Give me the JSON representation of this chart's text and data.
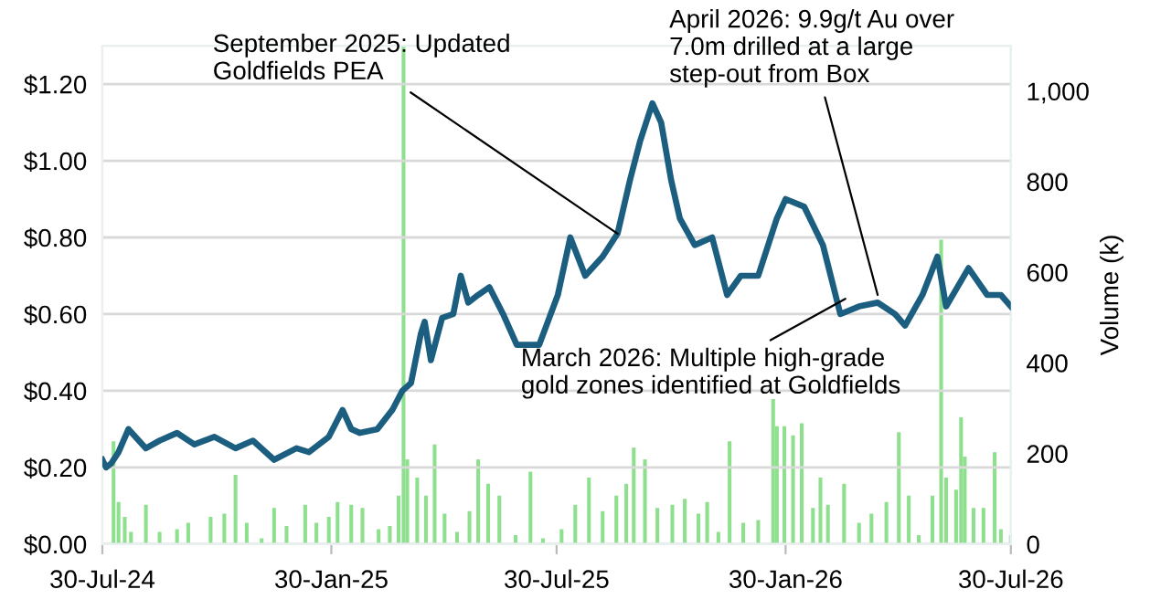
{
  "chart_data": {
    "type": "line",
    "xlim": [
      "2024-07-30",
      "2026-07-30"
    ],
    "xticks": [
      {
        "value": "2024-07-30",
        "label": "30-Jul-24"
      },
      {
        "value": "2025-01-30",
        "label": "30-Jan-25"
      },
      {
        "value": "2025-07-30",
        "label": "30-Jul-25"
      },
      {
        "value": "2026-01-30",
        "label": "30-Jan-26"
      },
      {
        "value": "2026-07-30",
        "label": "30-Jul-26"
      }
    ],
    "ylim": [
      0,
      1.3
    ],
    "yticks": [
      {
        "value": 0,
        "label": "$0.00"
      },
      {
        "value": 0.2,
        "label": "$0.20"
      },
      {
        "value": 0.4,
        "label": "$0.40"
      },
      {
        "value": 0.6,
        "label": "$0.60"
      },
      {
        "value": 0.8,
        "label": "$0.80"
      },
      {
        "value": 1.0,
        "label": "$1.00"
      },
      {
        "value": 1.2,
        "label": "$1.20"
      }
    ],
    "y2lim": [
      0,
      1100
    ],
    "y2ticks": [
      0,
      200,
      400,
      600,
      800,
      {
        "value": 1000,
        "label": "1,000"
      }
    ],
    "y2label": "Volume (k)",
    "grid": "y",
    "series": [
      {
        "type": "bar",
        "axis": "y2",
        "color": "#8ee08e",
        "x": [
          "2024-08-08",
          "2024-08-12",
          "2024-08-17",
          "2024-08-22",
          "2024-09-03",
          "2024-09-14",
          "2024-09-28",
          "2024-10-07",
          "2024-10-25",
          "2024-11-05",
          "2024-11-14",
          "2024-11-23",
          "2024-12-05",
          "2024-12-15",
          "2024-12-25",
          "2025-01-09",
          "2025-01-18",
          "2025-01-28",
          "2025-02-04",
          "2025-02-15",
          "2025-02-24",
          "2025-03-09",
          "2025-03-18",
          "2025-03-25",
          "2025-03-29",
          "2025-04-01",
          "2025-04-09",
          "2025-04-16",
          "2025-04-23",
          "2025-05-01",
          "2025-05-11",
          "2025-05-21",
          "2025-05-28",
          "2025-06-05",
          "2025-06-14",
          "2025-06-27",
          "2025-07-09",
          "2025-07-19",
          "2025-08-03",
          "2025-08-14",
          "2025-08-25",
          "2025-09-05",
          "2025-09-16",
          "2025-09-24",
          "2025-09-30",
          "2025-10-09",
          "2025-10-19",
          "2025-10-31",
          "2025-11-10",
          "2025-11-21",
          "2025-11-28",
          "2025-12-07",
          "2025-12-16",
          "2025-12-27",
          "2026-01-08",
          "2026-01-20",
          "2026-01-23",
          "2026-01-29",
          "2026-02-05",
          "2026-02-12",
          "2026-02-21",
          "2026-02-27",
          "2026-03-05",
          "2026-03-18",
          "2026-03-30",
          "2026-04-09",
          "2026-04-21",
          "2026-05-01",
          "2026-05-09",
          "2026-05-17",
          "2026-05-28",
          "2026-06-04",
          "2026-06-08",
          "2026-06-16",
          "2026-06-20",
          "2026-06-23",
          "2026-06-30",
          "2026-07-08",
          "2026-07-17",
          "2026-07-22",
          "2026-07-30"
        ],
        "values": [
          227,
          93,
          60,
          27,
          87,
          27,
          33,
          47,
          60,
          67,
          153,
          47,
          13,
          80,
          40,
          87,
          47,
          60,
          93,
          87,
          80,
          33,
          40,
          107,
          1100,
          187,
          147,
          107,
          220,
          67,
          27,
          73,
          187,
          133,
          107,
          20,
          160,
          13,
          33,
          87,
          147,
          73,
          107,
          133,
          213,
          187,
          80,
          87,
          100,
          67,
          93,
          27,
          227,
          47,
          53,
          320,
          260,
          260,
          240,
          267,
          80,
          147,
          87,
          133,
          47,
          67,
          93,
          247,
          107,
          20,
          107,
          672,
          147,
          120,
          280,
          193,
          80,
          80,
          203,
          33,
          20
        ]
      },
      {
        "color": "#1b5e80",
        "x": [
          "2024-07-30",
          "2024-08-02",
          "2024-08-06",
          "2024-08-12",
          "2024-08-20",
          "2024-09-03",
          "2024-09-14",
          "2024-09-28",
          "2024-10-12",
          "2024-10-28",
          "2024-11-14",
          "2024-11-28",
          "2024-12-15",
          "2025-01-02",
          "2025-01-12",
          "2025-01-28",
          "2025-02-08",
          "2025-02-15",
          "2025-02-22",
          "2025-03-08",
          "2025-03-20",
          "2025-03-28",
          "2025-04-04",
          "2025-04-12",
          "2025-04-15",
          "2025-04-20",
          "2025-04-29",
          "2025-05-08",
          "2025-05-14",
          "2025-05-20",
          "2025-05-28",
          "2025-06-06",
          "2025-06-17",
          "2025-06-28",
          "2025-07-16",
          "2025-07-31",
          "2025-08-10",
          "2025-08-22",
          "2025-09-05",
          "2025-09-17",
          "2025-09-27",
          "2025-10-05",
          "2025-10-15",
          "2025-10-22",
          "2025-10-30",
          "2025-11-06",
          "2025-11-18",
          "2025-12-02",
          "2025-12-14",
          "2025-12-25",
          "2026-01-08",
          "2026-01-23",
          "2026-01-30",
          "2026-02-14",
          "2026-03-01",
          "2026-03-15",
          "2026-03-30",
          "2026-04-14",
          "2026-04-28",
          "2026-05-06",
          "2026-05-20",
          "2026-06-01",
          "2026-06-08",
          "2026-06-26",
          "2026-07-11",
          "2026-07-22",
          "2026-07-30"
        ],
        "values": [
          0.22,
          0.2,
          0.21,
          0.24,
          0.3,
          0.25,
          0.27,
          0.29,
          0.26,
          0.28,
          0.25,
          0.27,
          0.22,
          0.25,
          0.24,
          0.28,
          0.35,
          0.3,
          0.29,
          0.3,
          0.35,
          0.4,
          0.42,
          0.55,
          0.58,
          0.48,
          0.59,
          0.6,
          0.7,
          0.63,
          0.65,
          0.67,
          0.6,
          0.52,
          0.52,
          0.65,
          0.8,
          0.7,
          0.75,
          0.81,
          0.95,
          1.05,
          1.15,
          1.1,
          0.95,
          0.85,
          0.78,
          0.8,
          0.65,
          0.7,
          0.7,
          0.85,
          0.9,
          0.88,
          0.78,
          0.6,
          0.62,
          0.63,
          0.6,
          0.57,
          0.65,
          0.75,
          0.62,
          0.72,
          0.65,
          0.65,
          0.62
        ]
      }
    ],
    "annotations": [
      {
        "text": "September 2025: Updated\nGoldfields PEA",
        "x": "2025-09-17",
        "y": 0.81
      },
      {
        "text": "April 2026: 9.9g/t Au over\n7.0m drilled at a large\nstep-out from Box",
        "x": "2026-04-14",
        "y": 0.65
      },
      {
        "text": "March 2026: Multiple high-grade\ngold zones identified at Goldfields",
        "x": "2026-03-19",
        "y": 0.64
      }
    ]
  }
}
